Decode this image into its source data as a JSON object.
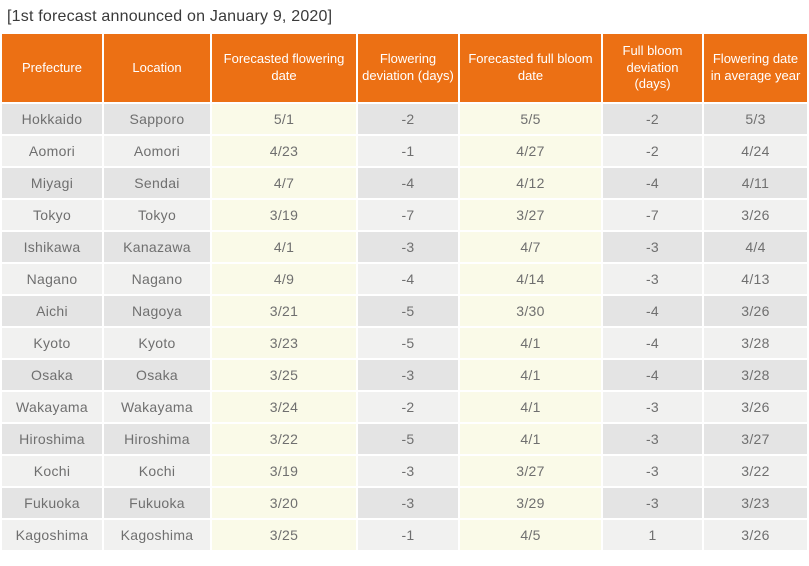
{
  "caption": "[1st forecast announced on January 9, 2020]",
  "chart_data": {
    "type": "table",
    "title": "1st forecast announced on January 9, 2020",
    "columns": [
      "Prefecture",
      "Location",
      "Forecasted flowering date",
      "Flowering deviation (days)",
      "Forecasted full bloom date",
      "Full bloom deviation (days)",
      "Flowering date in average year"
    ],
    "column_styles": [
      "gray",
      "gray",
      "cream",
      "gray",
      "cream",
      "gray",
      "gray"
    ],
    "rows": [
      [
        "Hokkaido",
        "Sapporo",
        "5/1",
        "-2",
        "5/5",
        "-2",
        "5/3"
      ],
      [
        "Aomori",
        "Aomori",
        "4/23",
        "-1",
        "4/27",
        "-2",
        "4/24"
      ],
      [
        "Miyagi",
        "Sendai",
        "4/7",
        "-4",
        "4/12",
        "-4",
        "4/11"
      ],
      [
        "Tokyo",
        "Tokyo",
        "3/19",
        "-7",
        "3/27",
        "-7",
        "3/26"
      ],
      [
        "Ishikawa",
        "Kanazawa",
        "4/1",
        "-3",
        "4/7",
        "-3",
        "4/4"
      ],
      [
        "Nagano",
        "Nagano",
        "4/9",
        "-4",
        "4/14",
        "-3",
        "4/13"
      ],
      [
        "Aichi",
        "Nagoya",
        "3/21",
        "-5",
        "3/30",
        "-4",
        "3/26"
      ],
      [
        "Kyoto",
        "Kyoto",
        "3/23",
        "-5",
        "4/1",
        "-4",
        "3/28"
      ],
      [
        "Osaka",
        "Osaka",
        "3/25",
        "-3",
        "4/1",
        "-4",
        "3/28"
      ],
      [
        "Wakayama",
        "Wakayama",
        "3/24",
        "-2",
        "4/1",
        "-3",
        "3/26"
      ],
      [
        "Hiroshima",
        "Hiroshima",
        "3/22",
        "-5",
        "4/1",
        "-3",
        "3/27"
      ],
      [
        "Kochi",
        "Kochi",
        "3/19",
        "-3",
        "3/27",
        "-3",
        "3/22"
      ],
      [
        "Fukuoka",
        "Fukuoka",
        "3/20",
        "-3",
        "3/29",
        "-3",
        "3/23"
      ],
      [
        "Kagoshima",
        "Kagoshima",
        "3/25",
        "-1",
        "4/5",
        "1",
        "3/26"
      ]
    ]
  },
  "colors": {
    "header_bg": "#ec7014",
    "header_text": "#ffffff",
    "row_odd_gray": "#e4e4e4",
    "row_even_gray": "#f1f1f0",
    "cream": "#fafae8",
    "cell_text": "#6f6f6f",
    "title_text": "#3a3a3a",
    "page_bg": "#ffffff"
  }
}
